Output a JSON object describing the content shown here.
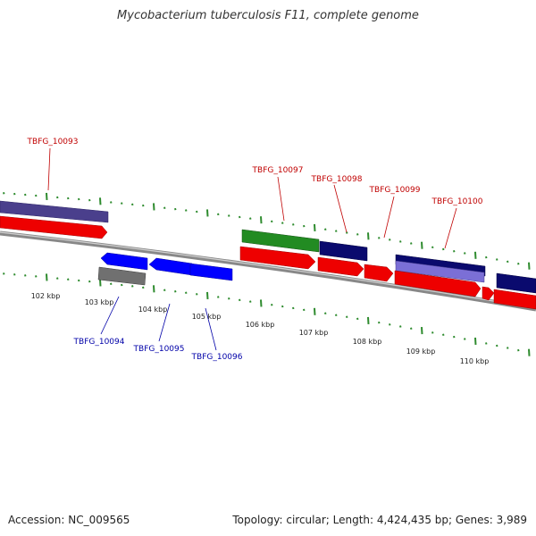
{
  "title": "Mycobacterium tuberculosis F11, complete genome",
  "footer": {
    "accession": "Accession: NC_009565",
    "topology": "Topology: circular; Length: 4,424,435 bp; Genes: 3,989"
  },
  "colors": {
    "forward_label": "#c00000",
    "reverse_label": "#0000a8",
    "cds_red": "#ee0000",
    "gene_blue": "#0000ff",
    "gene_navy": "#0a0a6e",
    "gene_purple": "#4a3f8c",
    "gene_green": "#228b22",
    "gene_gray": "#707070",
    "tick_green": "#2e8b2e",
    "backbone": "#888888"
  },
  "kbp_labels": [
    "102 kbp",
    "103 kbp",
    "104 kbp",
    "105 kbp",
    "106 kbp",
    "107 kbp",
    "108 kbp",
    "109 kbp",
    "110 kbp"
  ],
  "forward_genes": [
    "TBFG_10093",
    "TBFG_10097",
    "TBFG_10098",
    "TBFG_10099",
    "TBFG_10100"
  ],
  "reverse_genes": [
    "TBFG_10094",
    "TBFG_10095",
    "TBFG_10096"
  ]
}
